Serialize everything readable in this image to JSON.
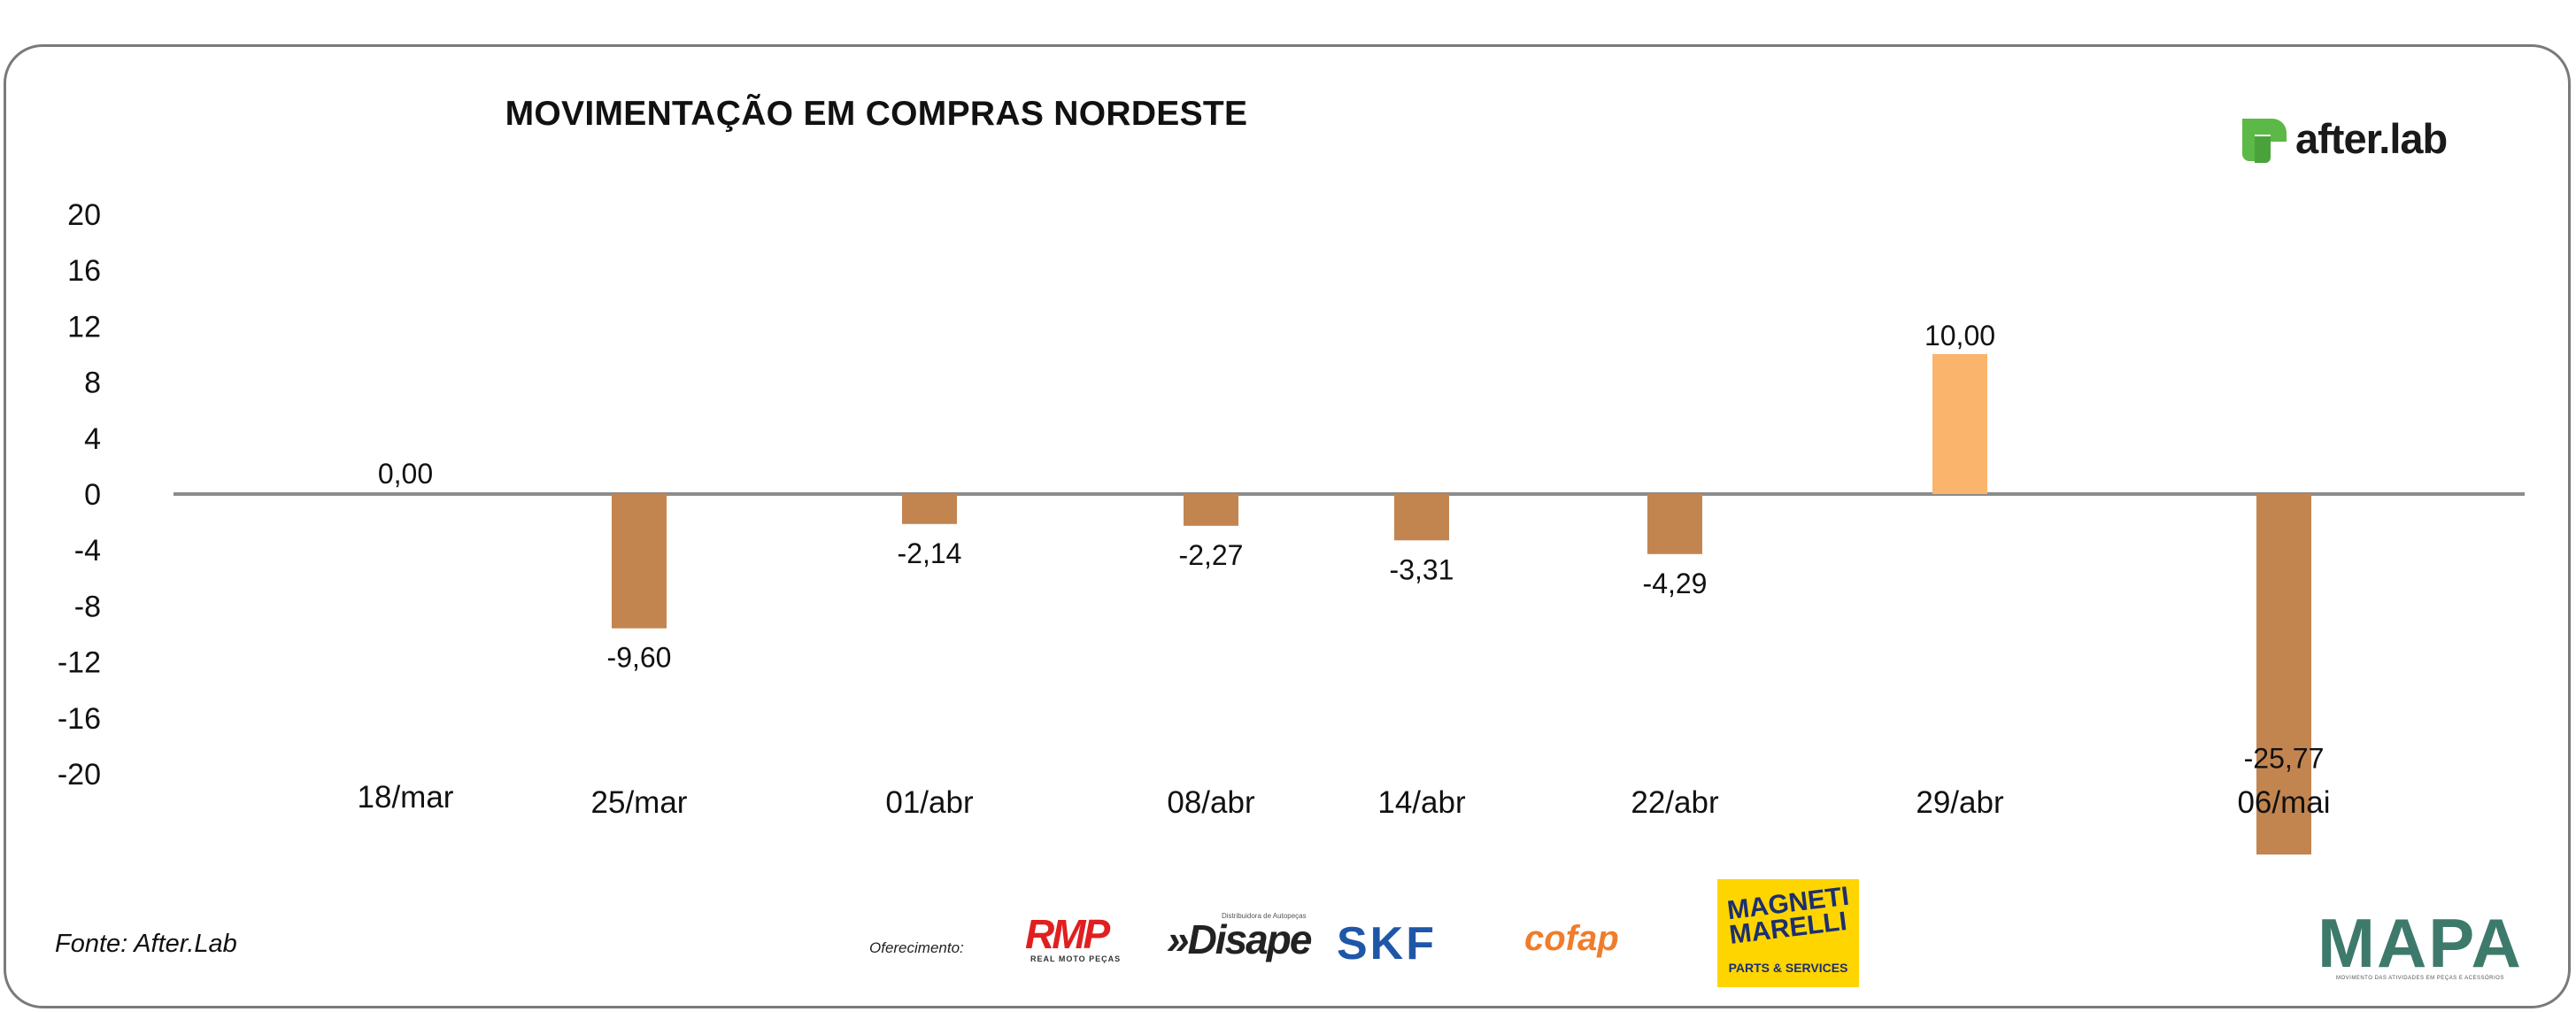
{
  "chart_data": {
    "type": "bar",
    "title": "MOVIMENTAÇÃO EM COMPRAS NORDESTE",
    "categories": [
      "18/mar",
      "25/mar",
      "01/abr",
      "08/abr",
      "14/abr",
      "22/abr",
      "29/abr",
      "06/mai"
    ],
    "values": [
      0.0,
      -9.6,
      -2.14,
      -2.27,
      -3.31,
      -4.29,
      10.0,
      -25.77
    ],
    "value_labels": [
      "0,00",
      "-9,60",
      "-2,14",
      "-2,27",
      "-3,31",
      "-4,29",
      "10,00",
      "-25,77"
    ],
    "y_ticks": [
      "20",
      "16",
      "12",
      "8",
      "4",
      "0",
      "-4",
      "-8",
      "-12",
      "-16",
      "-20"
    ],
    "ylim": [
      -20,
      20
    ],
    "grid": false,
    "colors": {
      "negative": "#c38550",
      "positive": "#fbb46c",
      "axis": "#8c8c8c"
    }
  },
  "brand": {
    "name": "after.lab",
    "color": "#5cb947"
  },
  "footer": {
    "source": "Fonte: After.Lab",
    "offer_label": "Oferecimento:",
    "sponsors": {
      "rmp": "RMP",
      "rmp_sub": "REAL MOTO PEÇAS",
      "disape_sub": "Distribuidora de Autopeças",
      "disape": "»Disape",
      "skf": "SKF",
      "cofap": "cofap",
      "magneti_1": "MAGNETI",
      "magneti_2": "MARELLI",
      "magneti_sub": "PARTS & SERVICES",
      "mapa": "MAPA",
      "mapa_sub": "MOVIMENTO DAS ATIVIDADES EM PEÇAS E ACESSÓRIOS"
    }
  }
}
